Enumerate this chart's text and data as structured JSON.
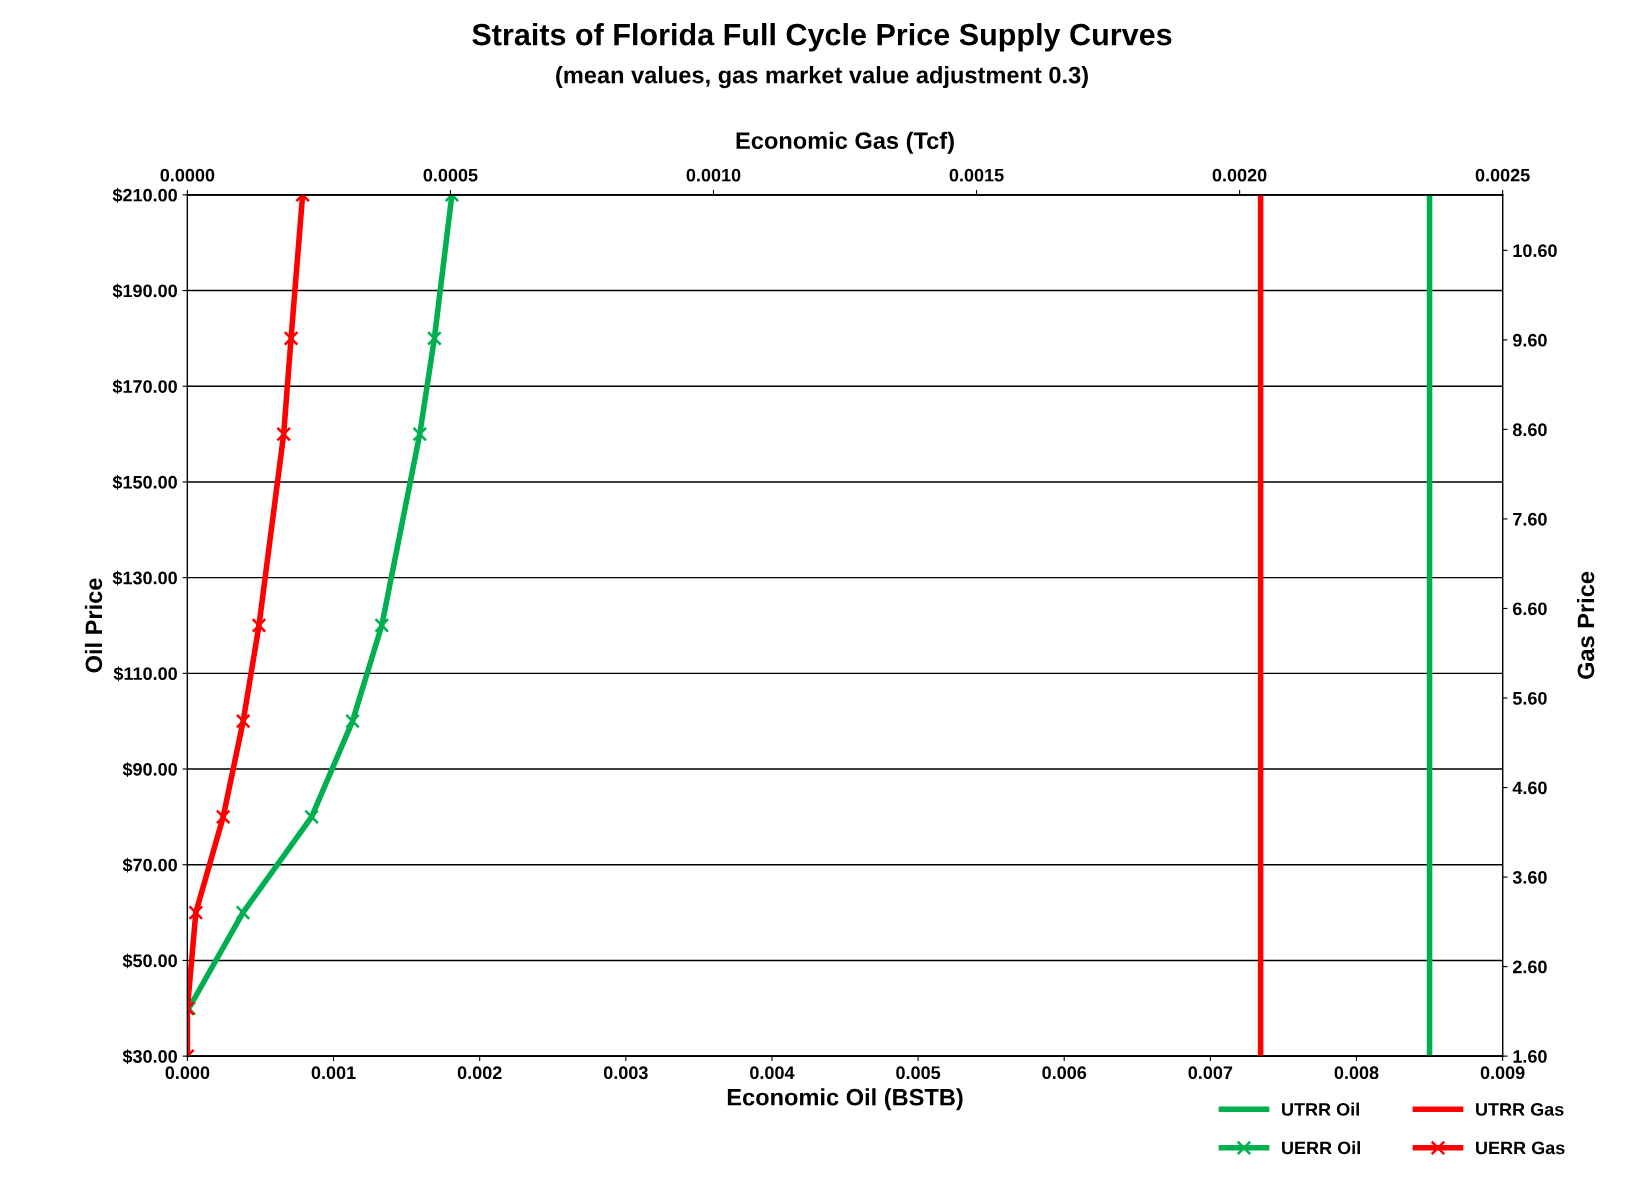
{
  "chart_data": {
    "type": "line",
    "title": "Straits of Florida Full Cycle Price Supply Curves",
    "subtitle": "(mean values, gas market value adjustment 0.3)",
    "xlabel": "Economic Oil (BSTB)",
    "x2label": "Economic Gas (Tcf)",
    "ylabel": "Oil Price",
    "y2label": "Gas Price",
    "xlim": [
      0,
      0.009
    ],
    "xticks": [
      {
        "value": 0,
        "label": "0.000"
      },
      0.001,
      0.002,
      0.003,
      0.004,
      0.005,
      0.006,
      0.007,
      0.008,
      0.009
    ],
    "x2lim": [
      0,
      0.0025
    ],
    "x2ticks": [
      {
        "value": 0,
        "label": "0.0000"
      },
      0.0005,
      {
        "value": 0.001,
        "label": "0.0010"
      },
      {
        "value": 0.0015,
        "label": "0.0015"
      },
      {
        "value": 0.002,
        "label": "0.0020"
      },
      0.0025
    ],
    "ylim": [
      30,
      210
    ],
    "yticks": [
      {
        "value": 30,
        "label": "$30.00"
      },
      {
        "value": 50,
        "label": "$50.00"
      },
      {
        "value": 70,
        "label": "$70.00"
      },
      {
        "value": 90,
        "label": "$90.00"
      },
      {
        "value": 110,
        "label": "$110.00"
      },
      {
        "value": 130,
        "label": "$130.00"
      },
      {
        "value": 150,
        "label": "$150.00"
      },
      {
        "value": 170,
        "label": "$170.00"
      },
      {
        "value": 190,
        "label": "$190.00"
      },
      {
        "value": 210,
        "label": "$210.00"
      }
    ],
    "y2lim": [
      1.6,
      11.22
    ],
    "y2ticks": [
      {
        "value": 1.6,
        "label": "1.60"
      },
      {
        "value": 2.6,
        "label": "2.60"
      },
      {
        "value": 3.6,
        "label": "3.60"
      },
      {
        "value": 4.6,
        "label": "4.60"
      },
      {
        "value": 5.6,
        "label": "5.60"
      },
      {
        "value": 6.6,
        "label": "6.60"
      },
      {
        "value": 7.6,
        "label": "7.60"
      },
      {
        "value": 8.6,
        "label": "8.60"
      },
      {
        "value": 9.6,
        "label": "9.60"
      },
      {
        "value": 10.6,
        "label": "10.60"
      }
    ],
    "grid": "y",
    "legend": "bottom right",
    "series": [
      {
        "name": "UTRR Oil",
        "color": "#00b050",
        "marker": "none",
        "x": [
          0.0085,
          0.0085
        ],
        "values": [
          30,
          210
        ]
      },
      {
        "name": "UERR Oil",
        "color": "#00b050",
        "marker": "cross",
        "x": [
          1e-05,
          0.00038,
          0.00085,
          0.00113,
          0.00133,
          0.00159,
          0.00169,
          0.00181
        ],
        "values": [
          40,
          60,
          80,
          100,
          120,
          160,
          180,
          210
        ]
      },
      {
        "name": "UTRR Gas",
        "color": "#ff0000",
        "marker": "none",
        "axis": "x2",
        "x": [
          0.00204,
          0.00204
        ],
        "values": [
          30,
          210
        ]
      },
      {
        "name": "UERR Gas",
        "color": "#ff0000",
        "marker": "cross",
        "axis": "x2",
        "x": [
          0,
          0,
          1.6e-05,
          6.8e-05,
          0.000106,
          0.000136,
          0.000183,
          0.000197,
          0.000219
        ],
        "values": [
          30,
          40,
          60,
          80,
          100,
          120,
          160,
          180,
          210
        ]
      }
    ]
  }
}
